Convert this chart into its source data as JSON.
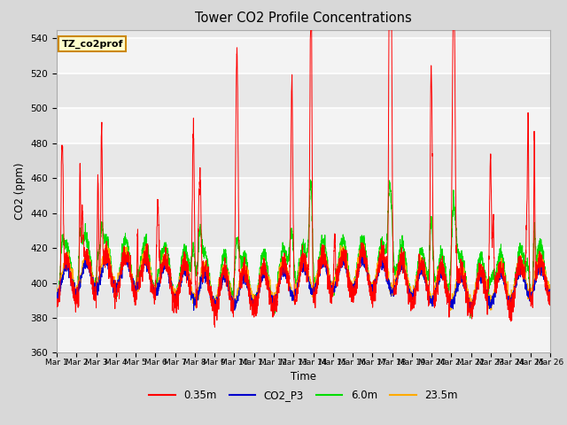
{
  "title": "Tower CO2 Profile Concentrations",
  "xlabel": "Time",
  "ylabel": "CO2 (ppm)",
  "ylim": [
    360,
    545
  ],
  "yticks": [
    360,
    380,
    400,
    420,
    440,
    460,
    480,
    500,
    520,
    540
  ],
  "bg_color": "#d8d8d8",
  "plot_bg_color": "#e8e8e8",
  "series_colors": {
    "0.35m": "#ff0000",
    "CO2_P3": "#0000cc",
    "6.0m": "#00dd00",
    "23.5m": "#ffaa00"
  },
  "annotation_text": "TZ_co2prof",
  "annotation_bg": "#ffffcc",
  "annotation_border": "#cc8800",
  "n_days": 25,
  "points_per_day": 144,
  "seed": 42
}
